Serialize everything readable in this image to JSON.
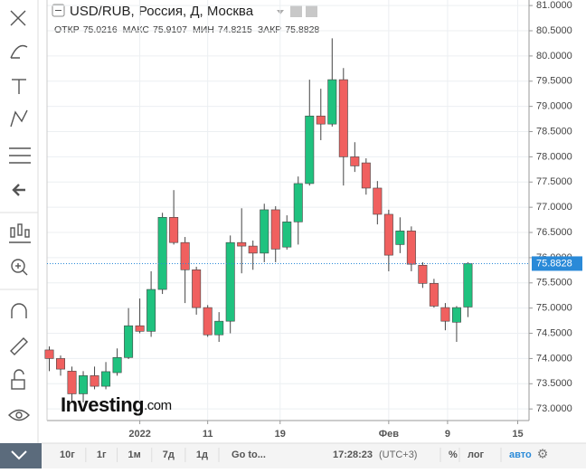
{
  "chart_data": {
    "type": "candlestick",
    "title": "USD/RUB, Россия, Д, Москва",
    "ohlc_labels": [
      "ОТКР",
      "МАКС",
      "МИН",
      "ЗАКР"
    ],
    "watermark": {
      "brand": "Investing",
      "suffix": ".com"
    },
    "x": [
      0,
      1,
      2,
      3,
      4,
      5,
      6,
      7,
      8,
      9,
      10,
      11,
      12,
      13,
      14,
      15,
      16,
      17,
      18,
      19,
      20,
      21,
      22,
      23,
      24,
      25,
      26,
      27,
      28,
      29,
      30,
      31,
      32,
      33,
      34,
      35,
      36,
      37
    ],
    "open": [
      74.17,
      74.0,
      73.75,
      73.3,
      73.66,
      73.45,
      73.72,
      74.02,
      74.65,
      74.54,
      75.37,
      76.8,
      76.3,
      75.76,
      75.01,
      74.47,
      74.74,
      76.3,
      76.23,
      76.09,
      76.95,
      76.21,
      76.71,
      77.47,
      78.81,
      78.65,
      79.53,
      78.0,
      77.88,
      77.38,
      76.86,
      76.26,
      76.53,
      75.85,
      75.49,
      75.01,
      74.72,
      75.0216
    ],
    "high": [
      74.24,
      74.06,
      73.84,
      73.75,
      73.84,
      73.93,
      74.2,
      75.0,
      75.19,
      75.73,
      76.89,
      77.34,
      76.41,
      75.82,
      75.06,
      74.92,
      76.44,
      76.98,
      76.34,
      77.07,
      77.02,
      76.84,
      77.61,
      79.53,
      79.35,
      80.35,
      79.76,
      78.29,
      77.97,
      77.52,
      76.95,
      76.8,
      76.62,
      75.91,
      75.58,
      75.1,
      75.04,
      75.9107
    ],
    "low": [
      73.75,
      73.66,
      73.16,
      73.13,
      73.39,
      73.39,
      73.66,
      73.99,
      74.5,
      74.43,
      75.28,
      76.26,
      75.1,
      74.87,
      74.43,
      74.33,
      74.5,
      75.69,
      75.76,
      75.91,
      75.91,
      76.16,
      76.26,
      77.43,
      78.33,
      78.6,
      77.43,
      77.7,
      77.25,
      76.66,
      75.73,
      76.09,
      75.73,
      75.4,
      75.01,
      74.56,
      74.33,
      74.8215
    ],
    "close": [
      74.0,
      73.79,
      73.3,
      73.66,
      73.45,
      73.74,
      74.02,
      74.65,
      74.54,
      75.37,
      76.8,
      76.3,
      75.76,
      75.01,
      74.47,
      74.74,
      76.3,
      76.23,
      76.09,
      76.95,
      76.17,
      76.71,
      77.47,
      78.81,
      78.65,
      79.53,
      78.0,
      77.82,
      77.38,
      76.86,
      76.05,
      76.53,
      75.87,
      75.49,
      75.04,
      74.74,
      75.01,
      75.8828
    ],
    "up_color": "#1fc27f",
    "down_color": "#f0605f",
    "price_line_color": "#2a8ad8",
    "xlim": [
      -0.2,
      42.4
    ],
    "xticks": [
      {
        "value": 8,
        "label": "2022"
      },
      {
        "value": 14,
        "label": "11"
      },
      {
        "value": 20.4,
        "label": "19"
      },
      {
        "value": 30,
        "label": "Фев"
      },
      {
        "value": 35.2,
        "label": "9"
      },
      {
        "value": 41.4,
        "label": "15"
      }
    ],
    "ylim": [
      72.77,
      81.11
    ],
    "yticks": [
      {
        "value": 73,
        "label": "73.0000"
      },
      {
        "value": 73.5,
        "label": "73.5000"
      },
      {
        "value": 74,
        "label": "74.0000"
      },
      {
        "value": 74.5,
        "label": "74.5000"
      },
      {
        "value": 75,
        "label": "75.0000"
      },
      {
        "value": 75.5,
        "label": "75.5000"
      },
      {
        "value": 76,
        "label": "76.0000"
      },
      {
        "value": 76.5,
        "label": "76.5000"
      },
      {
        "value": 77,
        "label": "77.0000"
      },
      {
        "value": 77.5,
        "label": "77.5000"
      },
      {
        "value": 78,
        "label": "78.0000"
      },
      {
        "value": 78.5,
        "label": "78.5000"
      },
      {
        "value": 79,
        "label": "79.0000"
      },
      {
        "value": 79.5,
        "label": "79.5000"
      },
      {
        "value": 80,
        "label": "80.0000"
      },
      {
        "value": 80.5,
        "label": "80.5000"
      },
      {
        "value": 81,
        "label": "81.0000"
      }
    ],
    "grid": true
  },
  "toolbar": {
    "periods": [
      "10г",
      "1г",
      "1м",
      "7д",
      "1д"
    ],
    "goto": "Go to...",
    "time": "17:28:23",
    "timezone": "(UTC+3)",
    "options": [
      "%",
      "лог",
      "авто"
    ]
  }
}
